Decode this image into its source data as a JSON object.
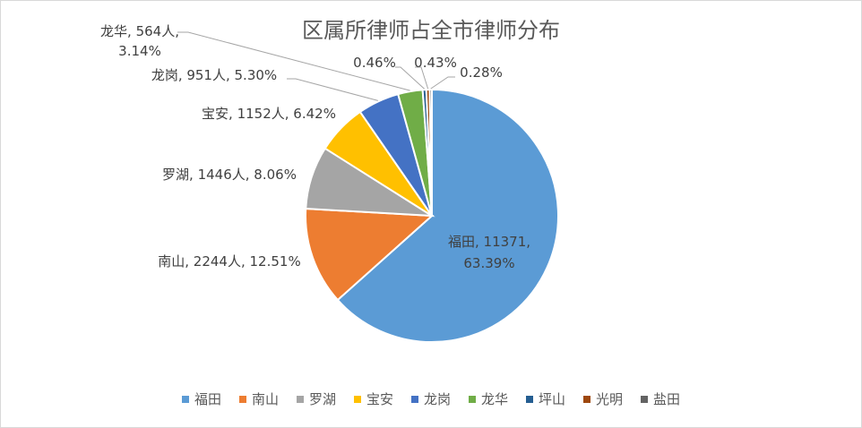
{
  "chart_data": {
    "type": "pie",
    "title": "区属所律师占全市律师分布",
    "categories": [
      "福田",
      "南山",
      "罗湖",
      "宝安",
      "龙岗",
      "龙华",
      "坪山",
      "光明",
      "盐田"
    ],
    "values": [
      11371,
      2244,
      1446,
      1152,
      951,
      564,
      83,
      77,
      50
    ],
    "percent_labels": [
      "63.39%",
      "12.51%",
      "8.06%",
      "6.42%",
      "5.30%",
      "3.14%",
      "0.46%",
      "0.43%",
      "0.28%"
    ],
    "colors": [
      "#5b9bd5",
      "#ed7d31",
      "#a5a5a5",
      "#ffc000",
      "#4472c4",
      "#70ad47",
      "#255e91",
      "#9e480e",
      "#636363"
    ],
    "data_labels": [
      [
        "福田, 11371,",
        "63.39%"
      ],
      [
        "南山, 2244人, 12.51%"
      ],
      [
        "罗湖, 1446人, 8.06%"
      ],
      [
        "宝安, 1152人, 6.42%"
      ],
      [
        "龙岗, 951人, 5.30%"
      ],
      [
        "龙华, 564人,",
        "3.14%"
      ],
      [
        "0.46%"
      ],
      [
        "0.43%"
      ],
      [
        "0.28%"
      ]
    ],
    "legend_position": "bottom"
  }
}
